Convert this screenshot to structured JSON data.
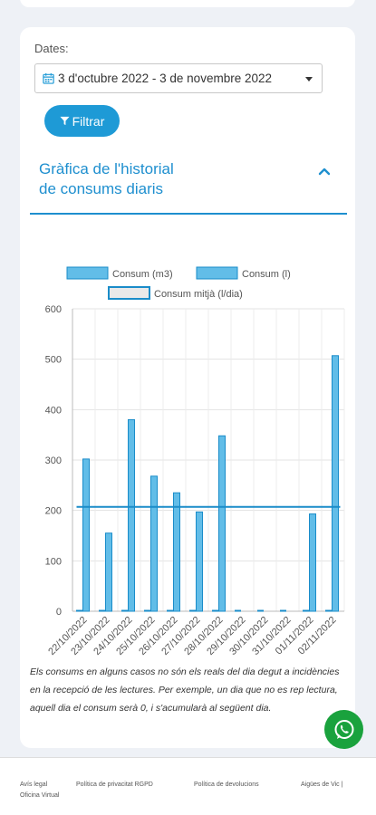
{
  "filters": {
    "dates_label": "Dates:",
    "date_range": "3 d'octubre 2022 - 3 de novembre 2022",
    "filter_button": "Filtrar"
  },
  "section": {
    "title_line1": "Gràfica de l'historial",
    "title_line2": "de consums diaris"
  },
  "chart_data": {
    "type": "bar",
    "categories": [
      "22/10/2022",
      "23/10/2022",
      "24/10/2022",
      "25/10/2022",
      "26/10/2022",
      "27/10/2022",
      "28/10/2022",
      "29/10/2022",
      "30/10/2022",
      "31/10/2022",
      "01/11/2022",
      "02/11/2022"
    ],
    "x_tick_labels": [
      "22/10/2022",
      "23/10/2022",
      "24/10/2022",
      "25/10/2022",
      "26/10/2022",
      "27/10/2022",
      "28/10/2022",
      "29/10/2022",
      "30/10/2022",
      "31/10/2022",
      "01/11/2022",
      "02/11/2022"
    ],
    "series": [
      {
        "name": "Consum (m3)",
        "values": [
          0.3,
          0.15,
          0.38,
          0.27,
          0.23,
          0.2,
          0.35,
          0,
          0,
          0,
          0.19,
          0.51
        ]
      },
      {
        "name": "Consum (l)",
        "values": [
          302,
          155,
          380,
          268,
          235,
          197,
          348,
          0,
          0,
          0,
          193,
          507
        ]
      },
      {
        "name": "Consum mitjà (l/dia)",
        "values": [
          207,
          207,
          207,
          207,
          207,
          207,
          207,
          207,
          207,
          207,
          207,
          207
        ]
      }
    ],
    "y_ticks": [
      "0",
      "100",
      "200",
      "300",
      "400",
      "500",
      "600"
    ],
    "ylim": [
      0,
      600
    ],
    "grid": true,
    "legend_position": "top"
  },
  "note": "Els consums en alguns casos no són els reals del dia degut a incidències en la recepció de les lectures. Per exemple, un dia que no es rep lectura, aquell dia el consum serà 0, i s'acumularà al següent dia.",
  "footer": {
    "links": [
      "Avís legal",
      "Política de privacitat RGPD",
      "Política de devolucions",
      "Aigües de Vic |",
      "Oficina Virtual"
    ]
  },
  "colors": {
    "accent": "#1e9ad6",
    "bar_fill": "#62bde8",
    "bar_stroke": "#1a8cc9",
    "whatsapp": "#1aa23d"
  },
  "icons": [
    "calendar-icon",
    "caret-down-icon",
    "funnel-icon",
    "chevron-up-icon",
    "whatsapp-icon"
  ]
}
